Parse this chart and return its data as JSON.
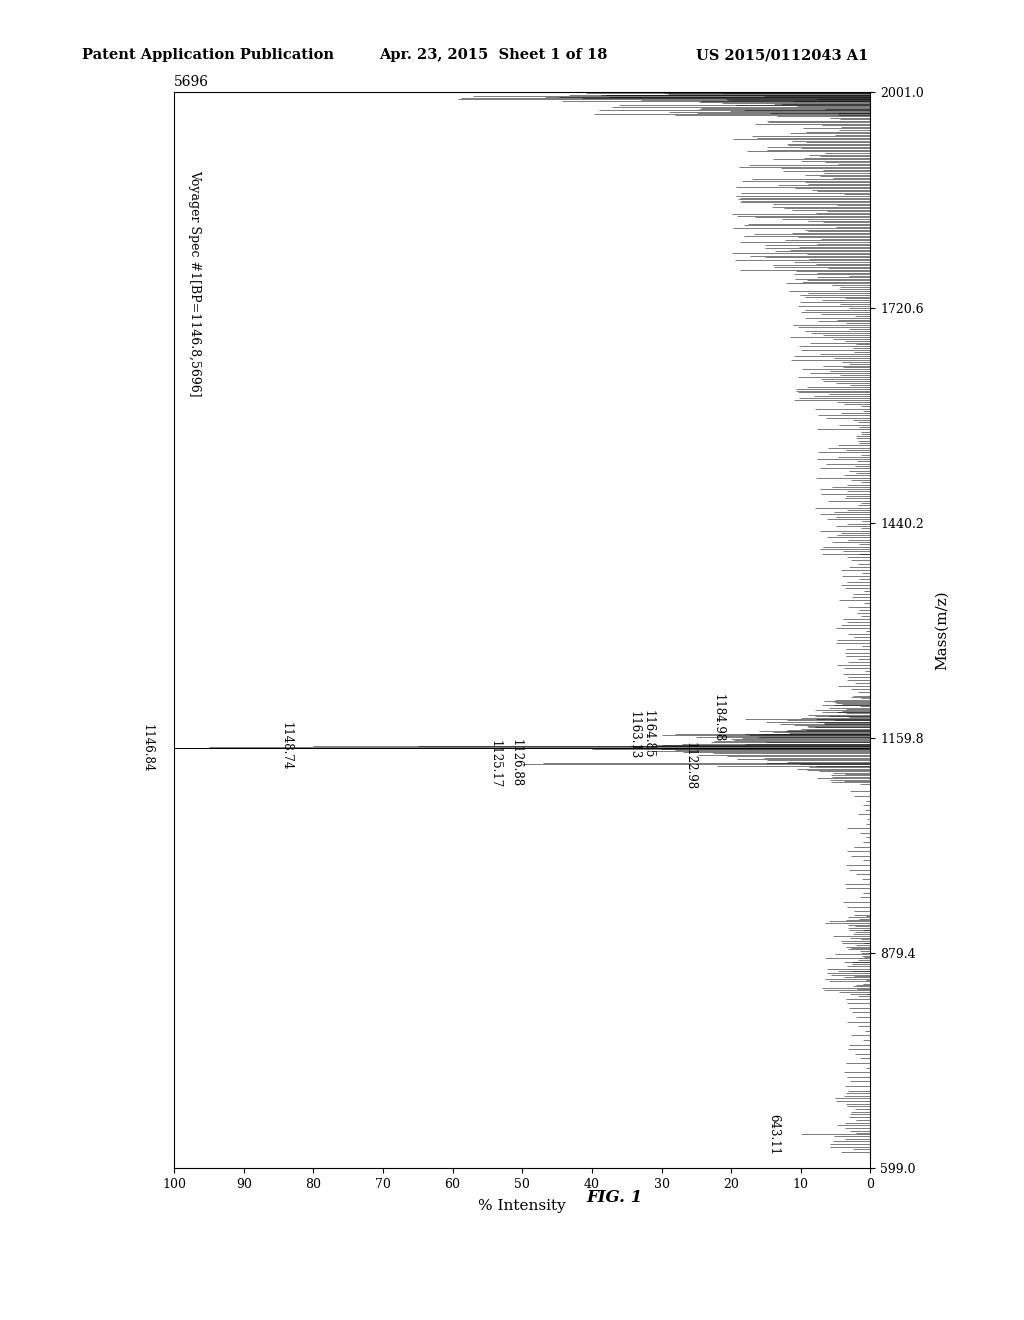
{
  "header_left": "Patent Application Publication",
  "header_center": "Apr. 23, 2015  Sheet 1 of 18",
  "header_right": "US 2015/0112043 A1",
  "figure_label": "FIG. 1",
  "spectrum_title": "Voyager Spec #1[BP=1146.8,5696]",
  "mass_label": "Mass(m/z)",
  "intensity_label": "% Intensity",
  "mass_min": 599.0,
  "mass_max": 2001.0,
  "intensity_min": 0,
  "intensity_max": 100,
  "yticks_mass": [
    599.0,
    879.4,
    1159.8,
    1440.2,
    1720.6,
    2001.0
  ],
  "xticks_intensity": [
    0,
    10,
    20,
    30,
    40,
    50,
    60,
    70,
    80,
    90,
    100
  ],
  "base_peak_label": "5696",
  "annotations": [
    {
      "mass": 1146.84,
      "intensity": 100,
      "label": "1146.84"
    },
    {
      "mass": 1148.74,
      "intensity": 80,
      "label": "1148.74"
    },
    {
      "mass": 1125.17,
      "intensity": 50,
      "label": "1125.17"
    },
    {
      "mass": 1126.88,
      "intensity": 47,
      "label": "1126.88"
    },
    {
      "mass": 1163.13,
      "intensity": 30,
      "label": "1163.13"
    },
    {
      "mass": 1164.85,
      "intensity": 28,
      "label": "1164.85"
    },
    {
      "mass": 1122.98,
      "intensity": 22,
      "label": "1122.98"
    },
    {
      "mass": 1184.98,
      "intensity": 18,
      "label": "1184.98"
    },
    {
      "mass": 643.11,
      "intensity": 10,
      "label": "643.11"
    }
  ],
  "background_color": "#ffffff",
  "line_color": "#000000"
}
